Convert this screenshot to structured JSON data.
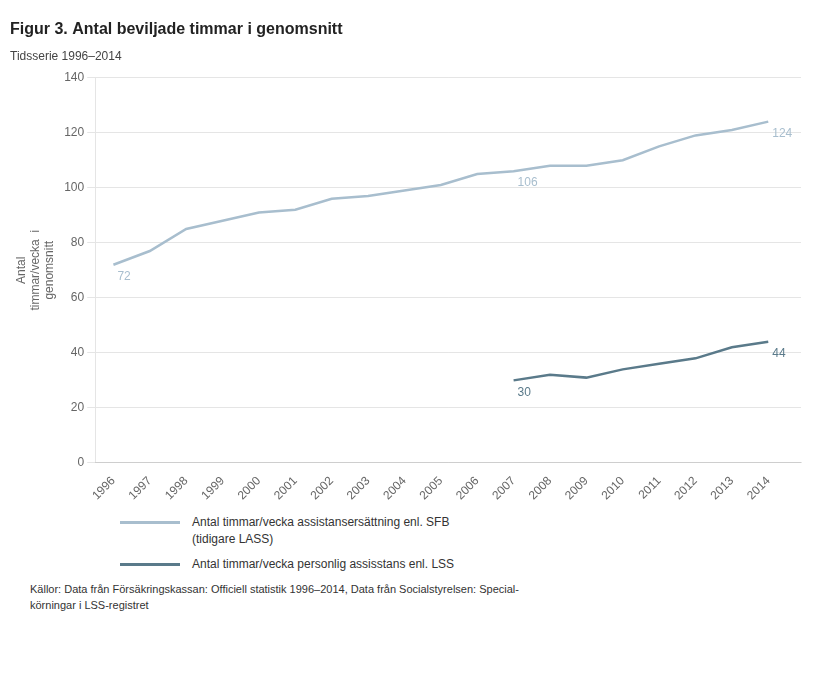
{
  "chart_data": {
    "type": "line",
    "title": "Figur 3. Antal beviljade timmar i genomsnitt",
    "subtitle": "Tidsserie 1996–2014",
    "ylabel": [
      "Antal",
      "timmar/vecka  i",
      "genomsnitt"
    ],
    "series": [
      {
        "name": "Antal timmar/vecka assistansersättning enl. SFB\n(tidigare LASS)",
        "color": "#a8bece",
        "x": [
          1996,
          1997,
          1998,
          1999,
          2000,
          2001,
          2002,
          2003,
          2004,
          2005,
          2006,
          2007,
          2008,
          2009,
          2010,
          2011,
          2012,
          2013,
          2014
        ],
        "values": [
          72,
          77,
          85,
          88,
          91,
          92,
          96,
          97,
          99,
          101,
          105,
          106,
          108,
          108,
          110,
          115,
          119,
          121,
          124
        ]
      },
      {
        "name": "Antal timmar/vecka personlig assisstans enl. LSS",
        "color": "#5a7a8a",
        "x": [
          2007,
          2008,
          2009,
          2010,
          2011,
          2012,
          2013,
          2014
        ],
        "values": [
          30,
          32,
          31,
          34,
          36,
          38,
          42,
          44
        ]
      }
    ],
    "annotations": [
      {
        "x": 1996,
        "y": 72,
        "text": "72",
        "color": "#a8bece"
      },
      {
        "x": 2007,
        "y": 106,
        "text": "106",
        "color": "#a8bece"
      },
      {
        "x": 2014,
        "y": 124,
        "text": "124",
        "color": "#a8bece"
      },
      {
        "x": 2007,
        "y": 30,
        "text": "30",
        "color": "#5a7a8a"
      },
      {
        "x": 2014,
        "y": 44,
        "text": "44",
        "color": "#5a7a8a"
      }
    ],
    "xlim": [
      1995.5,
      2014.9
    ],
    "xticks": [
      1996,
      1997,
      1998,
      1999,
      2000,
      2001,
      2002,
      2003,
      2004,
      2005,
      2006,
      2007,
      2008,
      2009,
      2010,
      2011,
      2012,
      2013,
      2014
    ],
    "ylim": [
      0,
      140
    ],
    "yticks": [
      0,
      20,
      40,
      60,
      80,
      100,
      120,
      140
    ],
    "grid": "y",
    "legend": "bottom",
    "source": "Källor: Data från Försäkringskassan: Officiell statistik 1996–2014, Data från Socialstyrelsen: Special-\nkörningar i LSS-registret"
  }
}
